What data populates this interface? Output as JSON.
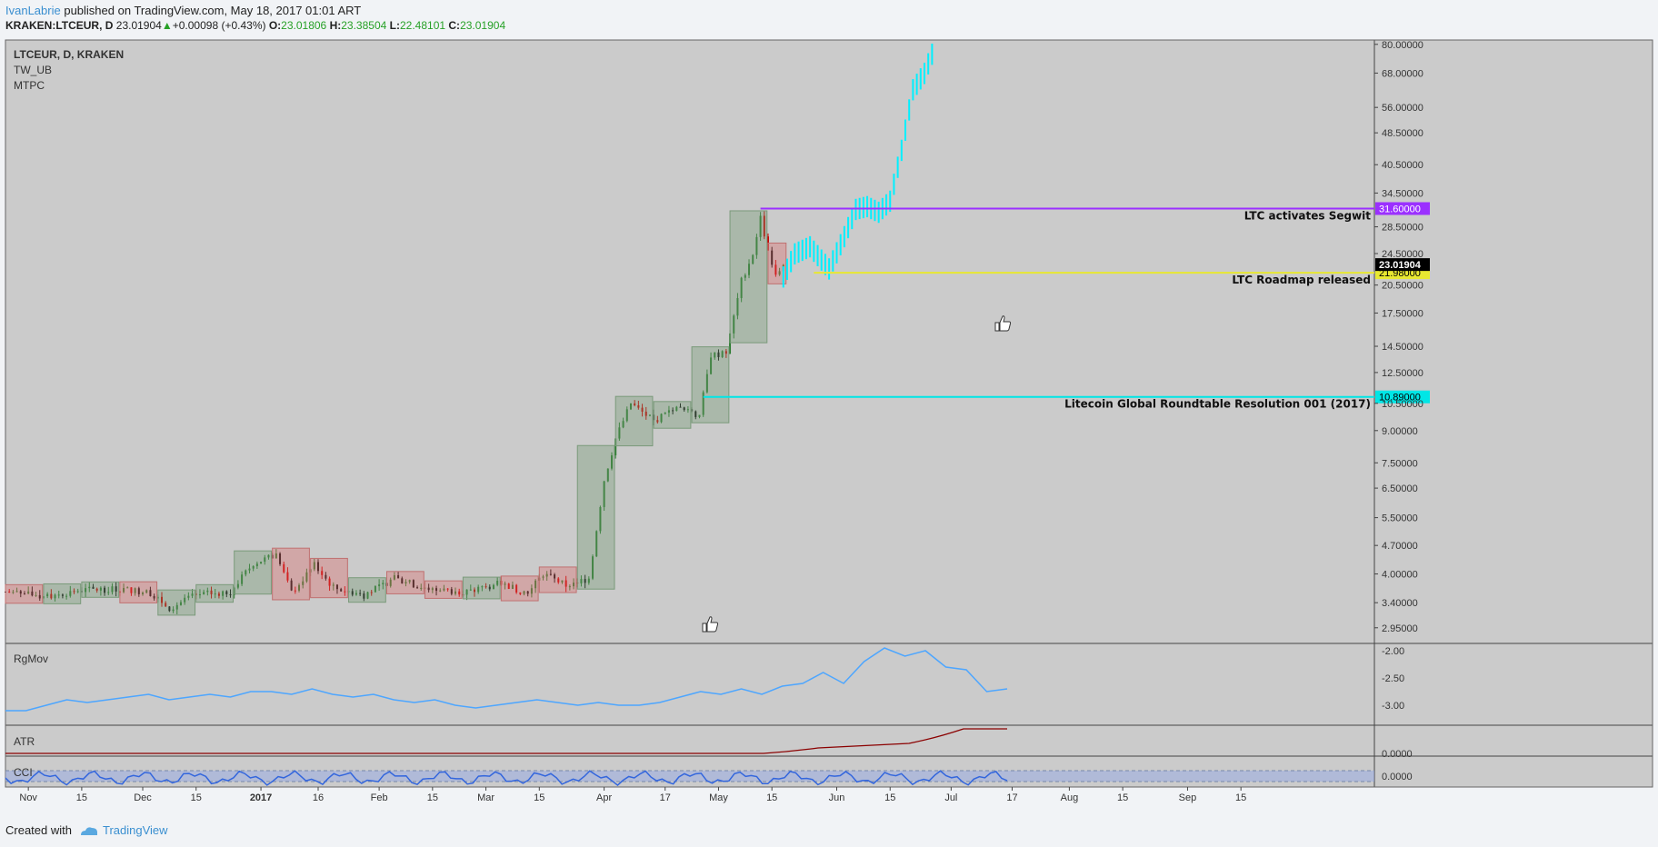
{
  "header": {
    "user": "IvanLabrie",
    "published": "published on TradingView.com, May 18, 2017 01:01 ART",
    "symbol": "KRAKEN:LTCEUR, D",
    "last": "23.01904",
    "change": "+0.00098 (+0.43%)",
    "o_label": "O:",
    "o": "23.01806",
    "h_label": "H:",
    "h": "23.38504",
    "l_label": "L:",
    "l": "22.48101",
    "c_label": "C:",
    "c": "23.01904"
  },
  "overlay": {
    "line1": "LTCEUR, D, KRAKEN",
    "line2": "TW_UB",
    "line3": "MTPC"
  },
  "footer": {
    "created": "Created with",
    "brand": "TradingView"
  },
  "chart_data": {
    "type": "candlestick",
    "y_scale": "log",
    "ylim": [
      2.7,
      82
    ],
    "y_ticks": [
      "80.00000",
      "68.00000",
      "56.00000",
      "48.50000",
      "40.50000",
      "34.50000",
      "28.50000",
      "24.50000",
      "20.50000",
      "17.50000",
      "14.50000",
      "12.50000",
      "10.50000",
      "9.00000",
      "7.50000",
      "6.50000",
      "5.50000",
      "4.70000",
      "4.00000",
      "3.40000",
      "2.95000"
    ],
    "x_ticks": [
      "Nov",
      "15",
      "Dec",
      "15",
      "2017",
      "16",
      "Feb",
      "15",
      "Mar",
      "15",
      "Apr",
      "17",
      "May",
      "15",
      "Jun",
      "15",
      "Jul",
      "17",
      "Aug",
      "15",
      "Sep",
      "15"
    ],
    "price_path": [
      [
        "2016-10-26",
        3.62
      ],
      [
        "2016-11-05",
        3.52
      ],
      [
        "2016-11-15",
        3.65
      ],
      [
        "2016-11-25",
        3.68
      ],
      [
        "2016-12-03",
        3.6
      ],
      [
        "2016-12-08",
        3.3
      ],
      [
        "2016-12-15",
        3.55
      ],
      [
        "2016-12-24",
        3.62
      ],
      [
        "2016-12-30",
        4.25
      ],
      [
        "2017-01-05",
        4.45
      ],
      [
        "2017-01-09",
        3.6
      ],
      [
        "2017-01-15",
        4.2
      ],
      [
        "2017-01-20",
        3.7
      ],
      [
        "2017-01-28",
        3.55
      ],
      [
        "2017-02-05",
        3.9
      ],
      [
        "2017-02-15",
        3.65
      ],
      [
        "2017-02-25",
        3.62
      ],
      [
        "2017-03-05",
        3.8
      ],
      [
        "2017-03-12",
        3.58
      ],
      [
        "2017-03-16",
        4.0
      ],
      [
        "2017-03-22",
        3.75
      ],
      [
        "2017-03-28",
        3.9
      ],
      [
        "2017-04-01",
        6.8
      ],
      [
        "2017-04-04",
        8.6
      ],
      [
        "2017-04-08",
        10.5
      ],
      [
        "2017-04-14",
        9.5
      ],
      [
        "2017-04-20",
        10.2
      ],
      [
        "2017-04-26",
        9.8
      ],
      [
        "2017-04-29",
        13.8
      ],
      [
        "2017-05-03",
        13.9
      ],
      [
        "2017-05-07",
        21.0
      ],
      [
        "2017-05-10",
        24.5
      ],
      [
        "2017-05-12",
        30.0
      ],
      [
        "2017-05-14",
        25.0
      ],
      [
        "2017-05-16",
        21.5
      ],
      [
        "2017-05-18",
        23.02
      ]
    ],
    "projection": [
      [
        "2017-05-18",
        21.5
      ],
      [
        "2017-05-21",
        24.5
      ],
      [
        "2017-05-25",
        25.5
      ],
      [
        "2017-05-30",
        22.5
      ],
      [
        "2017-06-03",
        27.0
      ],
      [
        "2017-06-06",
        31.5
      ],
      [
        "2017-06-09",
        32.0
      ],
      [
        "2017-06-12",
        31.0
      ],
      [
        "2017-06-15",
        33.0
      ],
      [
        "2017-06-18",
        44.0
      ],
      [
        "2017-06-21",
        62.0
      ],
      [
        "2017-06-24",
        68.0
      ],
      [
        "2017-06-27",
        80.0
      ]
    ],
    "levels": [
      {
        "label": "LTC activates Segwit",
        "value": "31.60000",
        "start": "2017-05-12",
        "color": "#9b30ff",
        "text_color": "#ffffff"
      },
      {
        "label": "LTC Roadmap released",
        "value": "21.98000",
        "start": "2017-05-26",
        "color": "#e8e831",
        "text_color": "#000000"
      },
      {
        "label": "Litecoin Global Roundtable Resolution 001 (2017)",
        "value": "10.89000",
        "start": "2017-04-27",
        "color": "#00e6e6",
        "text_color": "#000000"
      }
    ],
    "last_price_label": "23.01904",
    "indicators": [
      {
        "name": "RgMov",
        "ticks": [
          "-2.00",
          "-2.50",
          "-3.00"
        ],
        "color": "#4da6ff",
        "values": [
          -3.1,
          -3.1,
          -3.0,
          -2.9,
          -2.95,
          -2.9,
          -2.85,
          -2.8,
          -2.9,
          -2.85,
          -2.8,
          -2.85,
          -2.75,
          -2.75,
          -2.8,
          -2.7,
          -2.8,
          -2.85,
          -2.8,
          -2.9,
          -2.95,
          -2.9,
          -3.0,
          -3.05,
          -3.0,
          -2.95,
          -2.9,
          -2.95,
          -3.0,
          -2.95,
          -3.0,
          -3.0,
          -2.95,
          -2.85,
          -2.75,
          -2.8,
          -2.7,
          -2.8,
          -2.65,
          -2.6,
          -2.4,
          -2.6,
          -2.2,
          -1.95,
          -2.1,
          -2.0,
          -2.3,
          -2.35,
          -2.75,
          -2.7
        ]
      },
      {
        "name": "ATR",
        "ticks": [
          "0.0000"
        ],
        "color": "#8b0000"
      },
      {
        "name": "CCI",
        "ticks": [
          "0.0000"
        ],
        "color": "#3366dd"
      }
    ]
  }
}
